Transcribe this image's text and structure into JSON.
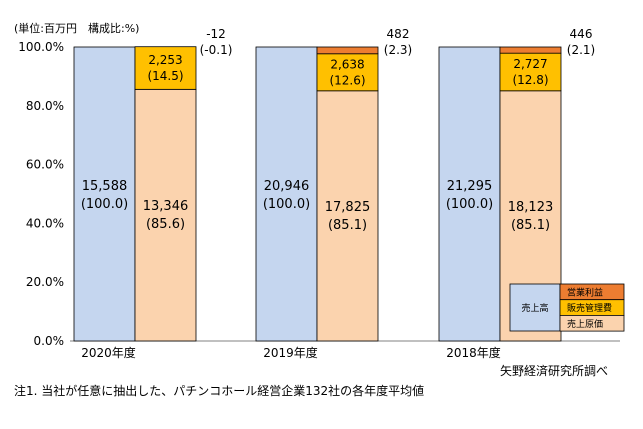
{
  "chart_data": {
    "type": "bar",
    "unit_note": "(単位:百万円　構成比:%)",
    "ylim": [
      0,
      100
    ],
    "y_ticks": [
      "0.0%",
      "20.0%",
      "40.0%",
      "60.0%",
      "80.0%",
      "100.0%"
    ],
    "categories": [
      "2020年度",
      "2019年度",
      "2018年度"
    ],
    "revenue": [
      {
        "value": "15,588",
        "share": "(100.0)",
        "pct": 100
      },
      {
        "value": "20,946",
        "share": "(100.0)",
        "pct": 100
      },
      {
        "value": "21,295",
        "share": "(100.0)",
        "pct": 100
      }
    ],
    "cost_stack": [
      {
        "segments": [
          {
            "name": "売上原価",
            "value": "13,346",
            "share": "(85.6)",
            "pct": 85.6
          },
          {
            "name": "販売管理費",
            "value": "2,253",
            "share": "(14.5)",
            "pct": 14.5
          },
          {
            "name": "営業利益",
            "value": "-12",
            "share": "(-0.1)",
            "pct": -0.1
          }
        ]
      },
      {
        "segments": [
          {
            "name": "売上原価",
            "value": "17,825",
            "share": "(85.1)",
            "pct": 85.1
          },
          {
            "name": "販売管理費",
            "value": "2,638",
            "share": "(12.6)",
            "pct": 12.6
          },
          {
            "name": "営業利益",
            "value": "482",
            "share": "(2.3)",
            "pct": 2.3
          }
        ]
      },
      {
        "segments": [
          {
            "name": "売上原価",
            "value": "18,123",
            "share": "(85.1)",
            "pct": 85.1
          },
          {
            "name": "販売管理費",
            "value": "2,727",
            "share": "(12.8)",
            "pct": 12.8
          },
          {
            "name": "営業利益",
            "value": "446",
            "share": "(2.1)",
            "pct": 2.1
          }
        ]
      }
    ],
    "legend": {
      "revenue_label": "売上高",
      "items": [
        "営業利益",
        "販売管理費",
        "売上原価"
      ]
    },
    "source": "矢野経済研究所調べ",
    "footnote": "注1.  当社が任意に抽出した、パチンコホール経営企業132社の各年度平均値",
    "colors": {
      "revenue": "#c5d6ef",
      "cogs": "#fbd3ae",
      "sga": "#ffc000",
      "op": "#ed7d31",
      "axis": "#808080",
      "outline": "#000000"
    }
  }
}
